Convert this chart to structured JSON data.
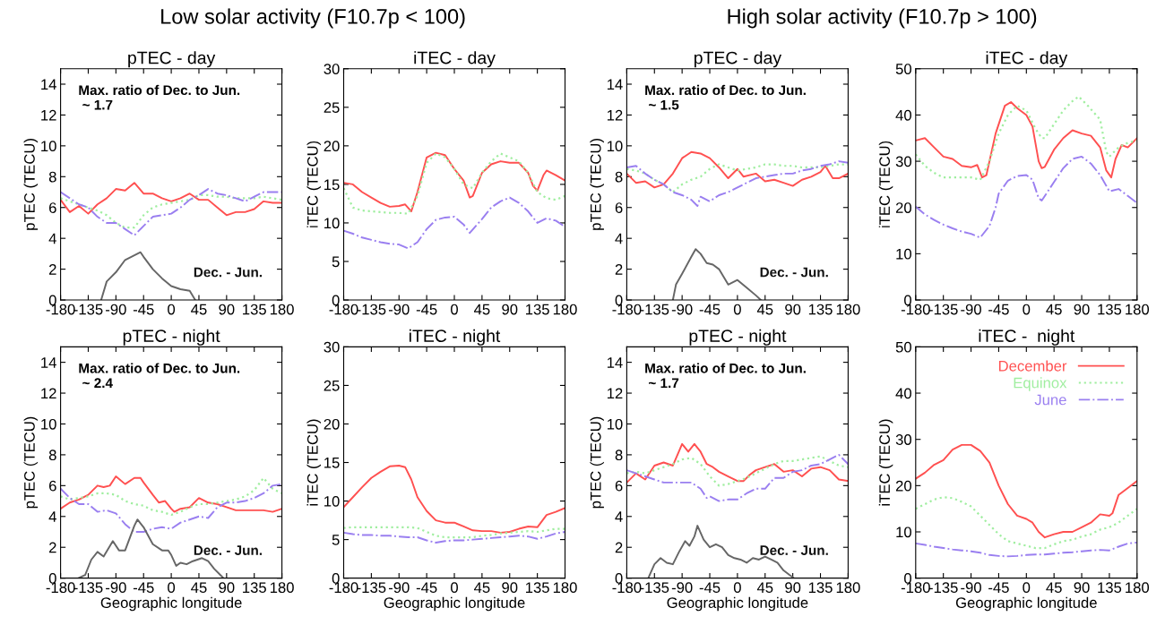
{
  "chart_data": [
    {
      "type": "line",
      "subtitle": "Low solar activity (F10.7p < 100)",
      "title": "pTEC - day",
      "ylabel": "pTEC (TECU)",
      "annotations": [
        "Max. ratio of Dec. to Jun.\n ~ 1.7"
      ],
      "xlim": [
        -180,
        180
      ],
      "xticks": [
        -180,
        -135,
        -90,
        -45,
        0,
        45,
        90,
        135,
        180
      ],
      "ylim": [
        0,
        15
      ],
      "yticks": [
        0,
        2,
        4,
        6,
        8,
        10,
        12,
        14
      ],
      "x": [
        -180,
        -165,
        -150,
        -135,
        -120,
        -105,
        -90,
        -75,
        -60,
        -45,
        -30,
        -15,
        0,
        15,
        30,
        45,
        60,
        75,
        90,
        105,
        120,
        135,
        150,
        165,
        180
      ],
      "series": [
        {
          "color": "#ff5050",
          "line_style": "solid",
          "values": [
            6.5,
            5.7,
            6.1,
            5.6,
            6.2,
            6.6,
            7.2,
            7.1,
            7.6,
            6.9,
            6.9,
            6.6,
            6.4,
            6.6,
            6.9,
            6.5,
            6.5,
            6.0,
            5.5,
            5.7,
            5.7,
            5.9,
            6.4,
            6.3,
            6.3
          ]
        },
        {
          "color": "#a0eea0",
          "line_style": "dotted",
          "values": [
            6.6,
            6.4,
            6.2,
            6.0,
            5.8,
            5.5,
            5.0,
            4.7,
            4.7,
            5.5,
            6.0,
            6.2,
            6.3,
            6.4,
            6.5,
            6.8,
            6.8,
            6.7,
            6.7,
            6.6,
            6.6,
            6.6,
            6.7,
            6.6,
            6.5
          ]
        },
        {
          "color": "#9a7ff0",
          "line_style": "dashdot",
          "values": [
            7.0,
            6.6,
            6.2,
            6.0,
            5.4,
            5.0,
            5.0,
            4.6,
            4.2,
            4.8,
            5.4,
            5.5,
            5.6,
            6.0,
            6.5,
            6.8,
            7.2,
            6.9,
            6.8,
            6.6,
            6.4,
            6.7,
            7.0,
            7.0,
            7.0
          ]
        },
        {
          "name": "Dec. - Jun.",
          "color": "#666666",
          "line_style": "solid",
          "x": [
            -114,
            -105,
            -90,
            -75,
            -60,
            -50,
            -45,
            -30,
            -15,
            0,
            15,
            30,
            39
          ],
          "values": [
            0,
            1.2,
            1.8,
            2.6,
            2.9,
            3.1,
            2.8,
            2.0,
            1.4,
            0.9,
            0.7,
            0.6,
            0
          ]
        }
      ]
    },
    {
      "type": "line",
      "title": "iTEC - day",
      "ylabel": "iTEC (TECU)",
      "xlim": [
        -180,
        180
      ],
      "xticks": [
        -180,
        -135,
        -90,
        -45,
        0,
        45,
        90,
        135,
        180
      ],
      "ylim": [
        0,
        30
      ],
      "yticks": [
        0,
        5,
        10,
        15,
        20,
        25,
        30
      ],
      "x": [
        -180,
        -165,
        -150,
        -135,
        -120,
        -105,
        -90,
        -75,
        -60,
        -45,
        -30,
        -15,
        0,
        15,
        30,
        45,
        60,
        75,
        90,
        105,
        120,
        135,
        150,
        165,
        180
      ],
      "series": [
        {
          "color": "#ff5050",
          "line_style": "solid",
          "x": [
            -180,
            -165,
            -150,
            -135,
            -120,
            -105,
            -90,
            -80,
            -70,
            -60,
            -45,
            -30,
            -15,
            0,
            15,
            25,
            30,
            45,
            60,
            75,
            90,
            105,
            120,
            128,
            135,
            145,
            150,
            165,
            180
          ],
          "values": [
            15.2,
            15.0,
            14.0,
            13.3,
            12.6,
            12.1,
            12.2,
            12.4,
            11.5,
            14.0,
            18.5,
            19.1,
            18.8,
            17.0,
            15.5,
            13.3,
            13.5,
            16.5,
            17.6,
            18.0,
            17.8,
            17.8,
            16.5,
            14.8,
            14.2,
            16.2,
            16.8,
            16.2,
            15.5
          ]
        },
        {
          "color": "#a0eea0",
          "line_style": "dotted",
          "values": [
            14.5,
            12,
            11.6,
            11.5,
            11.4,
            11.3,
            11.3,
            11.2,
            13.5,
            17.8,
            19,
            18.5,
            17,
            15,
            14.5,
            16.5,
            18,
            19,
            18.5,
            18,
            16.5,
            14,
            13.2,
            13,
            13.5
          ]
        },
        {
          "color": "#9a7ff0",
          "line_style": "dashdot",
          "x": [
            -180,
            -165,
            -150,
            -135,
            -120,
            -105,
            -90,
            -75,
            -60,
            -45,
            -30,
            -15,
            0,
            15,
            25,
            45,
            60,
            75,
            90,
            105,
            120,
            135,
            150,
            165,
            180
          ],
          "values": [
            9.0,
            8.6,
            8.1,
            7.8,
            7.5,
            7.3,
            7.2,
            6.7,
            7.5,
            9.2,
            10.4,
            10.7,
            10.8,
            9.8,
            8.7,
            10.5,
            12,
            12.8,
            13.3,
            12.6,
            11.5,
            10.0,
            10.6,
            10.3,
            9.5
          ]
        }
      ]
    },
    {
      "type": "line",
      "subtitle": "High solar activity (F10.7p > 100)",
      "title": "pTEC - day",
      "ylabel": "pTEC (TECU)",
      "annotations": [
        "Max. ratio of Dec. to Jun.\n ~ 1.5"
      ],
      "xlim": [
        -180,
        180
      ],
      "xticks": [
        -180,
        -135,
        -90,
        -45,
        0,
        45,
        90,
        135,
        180
      ],
      "ylim": [
        0,
        15
      ],
      "yticks": [
        0,
        2,
        4,
        6,
        8,
        10,
        12,
        14
      ],
      "x": [
        -180,
        -165,
        -150,
        -135,
        -120,
        -105,
        -90,
        -75,
        -60,
        -45,
        -30,
        -15,
        0,
        15,
        30,
        45,
        60,
        75,
        90,
        105,
        120,
        135,
        150,
        165,
        180
      ],
      "series": [
        {
          "color": "#ff5050",
          "line_style": "solid",
          "x": [
            -180,
            -165,
            -150,
            -135,
            -120,
            -105,
            -90,
            -75,
            -60,
            -45,
            -30,
            -15,
            0,
            10,
            30,
            45,
            60,
            75,
            90,
            105,
            120,
            135,
            143,
            155,
            165,
            180
          ],
          "values": [
            8.2,
            7.6,
            7.7,
            7.3,
            7.5,
            8.2,
            9.2,
            9.6,
            9.5,
            9.2,
            8.6,
            7.9,
            8.5,
            8.0,
            8.2,
            7.7,
            7.8,
            7.6,
            7.4,
            7.8,
            8.0,
            8.3,
            8.7,
            7.9,
            7.9,
            8.2
          ]
        },
        {
          "color": "#a0eea0",
          "line_style": "dotted",
          "values": [
            8.5,
            8.4,
            8.2,
            7.8,
            7.5,
            7.0,
            7.5,
            7.8,
            8.0,
            8.5,
            8.8,
            8.6,
            8.4,
            8.5,
            8.6,
            8.8,
            8.8,
            8.7,
            8.7,
            8.6,
            8.6,
            8.6,
            8.7,
            8.8,
            8.8
          ]
        },
        {
          "color": "#9a7ff0",
          "line_style": "dashdot",
          "x": [
            -180,
            -165,
            -150,
            -135,
            -120,
            -105,
            -90,
            -75,
            -65,
            -60,
            -45,
            -30,
            -15,
            0,
            15,
            30,
            45,
            60,
            75,
            90,
            105,
            120,
            135,
            150,
            165,
            180
          ],
          "values": [
            8.6,
            8.7,
            8.2,
            7.8,
            7.5,
            7.0,
            6.8,
            6.5,
            6.1,
            6.7,
            6.4,
            6.8,
            7.0,
            7.3,
            7.6,
            7.9,
            8.0,
            8.1,
            8.2,
            8.2,
            8.4,
            8.5,
            8.7,
            8.8,
            9.0,
            8.9
          ]
        },
        {
          "name": "Dec. - Jun.",
          "color": "#666666",
          "line_style": "solid",
          "x": [
            -105,
            -100,
            -90,
            -75,
            -68,
            -60,
            -50,
            -40,
            -30,
            -15,
            0,
            15,
            30,
            38
          ],
          "values": [
            0,
            1.0,
            1.7,
            2.8,
            3.3,
            3.0,
            2.4,
            2.3,
            2.0,
            1.0,
            1.3,
            0.8,
            0.3,
            0
          ]
        }
      ]
    },
    {
      "type": "line",
      "title": "iTEC - day",
      "ylabel": "iTEC (TECU)",
      "xlim": [
        -180,
        180
      ],
      "xticks": [
        -180,
        -135,
        -90,
        -45,
        0,
        45,
        90,
        135,
        180
      ],
      "ylim": [
        0,
        50
      ],
      "yticks": [
        0,
        10,
        20,
        30,
        40,
        50
      ],
      "series": [
        {
          "color": "#ff5050",
          "line_style": "solid",
          "x": [
            -180,
            -165,
            -150,
            -135,
            -120,
            -105,
            -90,
            -80,
            -72,
            -65,
            -50,
            -35,
            -25,
            -15,
            0,
            10,
            20,
            25,
            30,
            45,
            60,
            75,
            90,
            105,
            120,
            130,
            138,
            145,
            155,
            165,
            180
          ],
          "values": [
            34.5,
            35,
            33,
            31,
            30.5,
            29,
            28.7,
            29.2,
            26.5,
            27,
            36,
            42,
            42.8,
            41.5,
            40,
            37.5,
            30,
            28.5,
            28.8,
            32.5,
            35,
            36.7,
            36,
            35.5,
            33,
            28,
            26.5,
            30.5,
            33.5,
            33,
            35
          ]
        },
        {
          "color": "#a0eea0",
          "line_style": "dotted",
          "x": [
            -180,
            -165,
            -150,
            -135,
            -120,
            -105,
            -90,
            -75,
            -60,
            -45,
            -30,
            -15,
            0,
            15,
            25,
            30,
            45,
            60,
            75,
            85,
            100,
            120,
            130,
            135,
            150,
            165,
            180
          ],
          "values": [
            31.5,
            29,
            27.5,
            26.5,
            26.5,
            26.5,
            26.5,
            26,
            30,
            36,
            40,
            42,
            41,
            37,
            35,
            35,
            38,
            41,
            43,
            44,
            42,
            39,
            32,
            31,
            33,
            34,
            34.5
          ]
        },
        {
          "color": "#9a7ff0",
          "line_style": "dashdot",
          "x": [
            -180,
            -165,
            -150,
            -135,
            -120,
            -105,
            -90,
            -75,
            -60,
            -50,
            -45,
            -30,
            -15,
            0,
            10,
            20,
            25,
            45,
            60,
            75,
            90,
            105,
            120,
            135,
            150,
            165,
            180
          ],
          "values": [
            20.2,
            18.5,
            17.3,
            16.3,
            15.5,
            14.8,
            14.3,
            13.5,
            16,
            20,
            23,
            25.8,
            26.8,
            27,
            26,
            22,
            21.5,
            25.5,
            28.5,
            30.5,
            31,
            29.5,
            27,
            23.5,
            24,
            22.5,
            21
          ]
        }
      ]
    },
    {
      "type": "line",
      "title": "pTEC - night",
      "ylabel": "pTEC (TECU)",
      "xlabel": "Geographic longitude",
      "annotations": [
        "Max. ratio of Dec. to Jun.\n ~ 2.4"
      ],
      "xlim": [
        -180,
        180
      ],
      "xticks": [
        -180,
        -135,
        -90,
        -45,
        0,
        45,
        90,
        135,
        180
      ],
      "ylim": [
        0,
        15
      ],
      "yticks": [
        0,
        2,
        4,
        6,
        8,
        10,
        12,
        14
      ],
      "x": [
        -180,
        -165,
        -150,
        -135,
        -120,
        -105,
        -90,
        -75,
        -60,
        -45,
        -30,
        -15,
        0,
        15,
        30,
        45,
        60,
        75,
        90,
        105,
        120,
        135,
        150,
        165,
        180
      ],
      "series": [
        {
          "color": "#ff5050",
          "line_style": "solid",
          "x": [
            -180,
            -165,
            -150,
            -135,
            -120,
            -110,
            -100,
            -90,
            -75,
            -60,
            -50,
            -45,
            -30,
            -20,
            -10,
            0,
            5,
            15,
            30,
            45,
            60,
            75,
            90,
            105,
            120,
            135,
            150,
            165,
            180
          ],
          "values": [
            4.5,
            4.9,
            5.1,
            5.4,
            6.0,
            5.9,
            6.0,
            6.6,
            6.1,
            6.5,
            6.5,
            6.2,
            5.4,
            4.9,
            5.0,
            4.5,
            4.3,
            4.5,
            4.6,
            5.2,
            4.9,
            4.8,
            4.6,
            4.4,
            4.4,
            4.4,
            4.4,
            4.3,
            4.5
          ]
        },
        {
          "color": "#a0eea0",
          "line_style": "dotted",
          "values": [
            5.3,
            5.1,
            5.2,
            5.3,
            5.5,
            5.5,
            5.4,
            5.0,
            4.8,
            4.7,
            4.4,
            4.3,
            4.1,
            4.3,
            4.6,
            4.8,
            4.8,
            4.9,
            5.0,
            5.1,
            5.3,
            5.7,
            6.5,
            5.8,
            5.5
          ]
        },
        {
          "color": "#9a7ff0",
          "line_style": "dashdot",
          "values": [
            5.8,
            5.2,
            4.8,
            4.8,
            4.3,
            4.4,
            4.2,
            3.5,
            3.0,
            3.0,
            3.2,
            3.3,
            3.2,
            3.6,
            3.8,
            4.0,
            3.9,
            4.6,
            4.9,
            4.9,
            5.0,
            5.2,
            5.5,
            6.0,
            6.1
          ]
        },
        {
          "name": "Dec. - Jun.",
          "color": "#666666",
          "line_style": "solid",
          "x": [
            -151,
            -140,
            -130,
            -120,
            -110,
            -95,
            -85,
            -75,
            -60,
            -55,
            -45,
            -30,
            -15,
            -5,
            0,
            8,
            15,
            25,
            35,
            50,
            60,
            70,
            80,
            85
          ],
          "values": [
            0,
            0.2,
            1.2,
            1.7,
            1.4,
            2.4,
            1.8,
            1.8,
            3.4,
            3.8,
            3.3,
            2.2,
            1.8,
            1.8,
            1.5,
            0.8,
            1.0,
            0.9,
            1.1,
            1.3,
            1.1,
            0.6,
            0.2,
            0
          ]
        }
      ]
    },
    {
      "type": "line",
      "title": "iTEC - night",
      "ylabel": "iTEC (TECU)",
      "xlabel": "Geographic longitude",
      "xlim": [
        -180,
        180
      ],
      "xticks": [
        -180,
        -135,
        -90,
        -45,
        0,
        45,
        90,
        135,
        180
      ],
      "ylim": [
        0,
        30
      ],
      "yticks": [
        0,
        5,
        10,
        15,
        20,
        25,
        30
      ],
      "x": [
        -180,
        -165,
        -150,
        -135,
        -120,
        -105,
        -90,
        -75,
        -60,
        -45,
        -30,
        -15,
        0,
        15,
        30,
        45,
        60,
        75,
        90,
        105,
        120,
        135,
        150,
        165,
        180
      ],
      "series": [
        {
          "color": "#ff5050",
          "line_style": "solid",
          "x": [
            -180,
            -165,
            -150,
            -135,
            -120,
            -105,
            -90,
            -80,
            -70,
            -60,
            -45,
            -30,
            -15,
            0,
            15,
            30,
            45,
            60,
            75,
            90,
            105,
            120,
            135,
            150,
            165,
            180
          ],
          "values": [
            9.2,
            10.5,
            11.8,
            13,
            13.8,
            14.5,
            14.6,
            14.4,
            12.8,
            10.5,
            8.7,
            7.5,
            7.2,
            7.2,
            6.7,
            6.2,
            6.1,
            6.1,
            5.9,
            6.0,
            6.4,
            6.7,
            6.6,
            8.2,
            8.6,
            9.1
          ]
        },
        {
          "color": "#a0eea0",
          "line_style": "dotted",
          "values": [
            6.5,
            6.6,
            6.6,
            6.6,
            6.6,
            6.6,
            6.6,
            6.6,
            6.5,
            6.0,
            5.5,
            5.3,
            5.3,
            5.3,
            5.3,
            5.5,
            5.6,
            5.8,
            5.9,
            6.0,
            6.1,
            6.0,
            6.2,
            6.4,
            6.4
          ]
        },
        {
          "color": "#9a7ff0",
          "line_style": "dashdot",
          "values": [
            5.9,
            5.7,
            5.6,
            5.6,
            5.5,
            5.5,
            5.4,
            5.3,
            5.3,
            4.9,
            4.6,
            4.8,
            4.9,
            4.9,
            5.0,
            5.1,
            5.2,
            5.3,
            5.4,
            5.5,
            5.4,
            5.1,
            5.4,
            5.8,
            6.0
          ]
        }
      ]
    },
    {
      "type": "line",
      "title": "pTEC - night",
      "ylabel": "pTEC (TECU)",
      "xlabel": "Geographic longitude",
      "annotations": [
        "Max. ratio of Dec. to Jun.\n ~ 1.7"
      ],
      "xlim": [
        -180,
        180
      ],
      "xticks": [
        -180,
        -135,
        -90,
        -45,
        0,
        45,
        90,
        135,
        180
      ],
      "ylim": [
        0,
        15
      ],
      "yticks": [
        0,
        2,
        4,
        6,
        8,
        10,
        12,
        14
      ],
      "x": [
        -180,
        -165,
        -150,
        -135,
        -120,
        -105,
        -90,
        -75,
        -60,
        -45,
        -30,
        -15,
        0,
        15,
        30,
        45,
        60,
        75,
        90,
        105,
        120,
        135,
        150,
        165,
        180
      ],
      "series": [
        {
          "color": "#ff5050",
          "line_style": "solid",
          "x": [
            -180,
            -165,
            -150,
            -135,
            -120,
            -105,
            -90,
            -80,
            -70,
            -60,
            -50,
            -40,
            -30,
            -15,
            0,
            10,
            20,
            30,
            45,
            60,
            75,
            90,
            105,
            120,
            135,
            150,
            165,
            180
          ],
          "values": [
            6.2,
            6.8,
            6.4,
            7.3,
            7.5,
            7.3,
            8.7,
            8.2,
            8.7,
            8.2,
            7.4,
            7.2,
            6.9,
            6.6,
            6.3,
            6.3,
            6.7,
            7.0,
            7.2,
            7.4,
            6.9,
            7.0,
            6.6,
            7.1,
            7.2,
            7.0,
            6.4,
            6.3
          ]
        },
        {
          "color": "#a0eea0",
          "line_style": "dotted",
          "values": [
            6.8,
            6.9,
            6.8,
            7.0,
            7.2,
            7.4,
            7.7,
            7.8,
            7.4,
            6.6,
            6.0,
            6.1,
            6.3,
            6.5,
            6.8,
            7.1,
            7.4,
            7.6,
            7.6,
            7.7,
            7.8,
            7.9,
            7.6,
            7.3,
            7.2
          ]
        },
        {
          "color": "#9a7ff0",
          "line_style": "dashdot",
          "x": [
            -180,
            -165,
            -150,
            -135,
            -120,
            -105,
            -90,
            -75,
            -60,
            -50,
            -45,
            -30,
            -15,
            0,
            15,
            30,
            45,
            60,
            75,
            90,
            105,
            120,
            135,
            150,
            165,
            180
          ],
          "values": [
            7.0,
            6.8,
            6.6,
            6.4,
            6.2,
            6.2,
            6.2,
            6.2,
            5.8,
            5.2,
            5.3,
            5.0,
            5.1,
            5.1,
            5.5,
            5.8,
            5.8,
            6.5,
            6.5,
            6.9,
            7.0,
            7.3,
            7.4,
            7.7,
            8.0,
            7.4
          ]
        },
        {
          "name": "Dec. - Jun.",
          "color": "#666666",
          "line_style": "solid",
          "x": [
            -145,
            -135,
            -125,
            -115,
            -105,
            -95,
            -85,
            -78,
            -70,
            -65,
            -55,
            -45,
            -35,
            -25,
            -15,
            -5,
            5,
            15,
            25,
            35,
            45,
            55,
            65,
            75,
            85,
            92
          ],
          "values": [
            0,
            0.9,
            1.3,
            1.0,
            0.9,
            1.7,
            2.4,
            2.1,
            2.7,
            3.4,
            2.5,
            2.0,
            2.2,
            2.0,
            1.5,
            1.3,
            1.2,
            1.0,
            1.3,
            1.2,
            1.4,
            1.2,
            1.0,
            0.5,
            0.2,
            0
          ]
        }
      ]
    },
    {
      "type": "line",
      "title": "iTEC -  night",
      "ylabel": "iTEC (TECU)",
      "xlabel": "Geographic longitude",
      "legend": "top right",
      "xlim": [
        -180,
        180
      ],
      "xticks": [
        -180,
        -135,
        -90,
        -45,
        0,
        45,
        90,
        135,
        180
      ],
      "ylim": [
        0,
        50
      ],
      "yticks": [
        0,
        10,
        20,
        30,
        40,
        50
      ],
      "x": [
        -180,
        -165,
        -150,
        -135,
        -120,
        -105,
        -90,
        -75,
        -60,
        -45,
        -30,
        -15,
        0,
        15,
        30,
        45,
        60,
        75,
        90,
        105,
        120,
        135,
        150,
        165,
        180
      ],
      "series": [
        {
          "name": "December",
          "color": "#ff5050",
          "line_style": "solid",
          "x": [
            -180,
            -165,
            -150,
            -135,
            -120,
            -105,
            -90,
            -75,
            -60,
            -45,
            -30,
            -15,
            0,
            10,
            20,
            30,
            45,
            60,
            75,
            90,
            105,
            120,
            135,
            140,
            150,
            165,
            180
          ],
          "values": [
            21.5,
            22.8,
            24.5,
            25.5,
            27.8,
            28.8,
            28.8,
            27.5,
            25,
            20,
            16,
            13.5,
            12.8,
            12,
            10,
            8.8,
            9.5,
            10,
            10,
            11,
            12,
            13.8,
            13.5,
            14,
            18,
            19.5,
            21
          ]
        },
        {
          "name": "Equinox",
          "color": "#a0eea0",
          "line_style": "dotted",
          "values": [
            15,
            16,
            17,
            17.5,
            17.3,
            16.5,
            15.5,
            13.5,
            11.5,
            9.5,
            8,
            7.5,
            7,
            6.5,
            6.5,
            7.3,
            8,
            8.3,
            9,
            9.5,
            10.5,
            11,
            12,
            13.5,
            15
          ]
        },
        {
          "name": "June",
          "color": "#9a7ff0",
          "line_style": "dashdot",
          "values": [
            7.5,
            7.2,
            6.8,
            6.5,
            6.2,
            6.0,
            5.8,
            5.5,
            5.0,
            4.8,
            4.7,
            4.8,
            5.0,
            5.1,
            5.1,
            5.3,
            5.5,
            5.6,
            5.8,
            6.0,
            6.1,
            6.0,
            6.8,
            7.5,
            7.7
          ]
        }
      ]
    }
  ]
}
